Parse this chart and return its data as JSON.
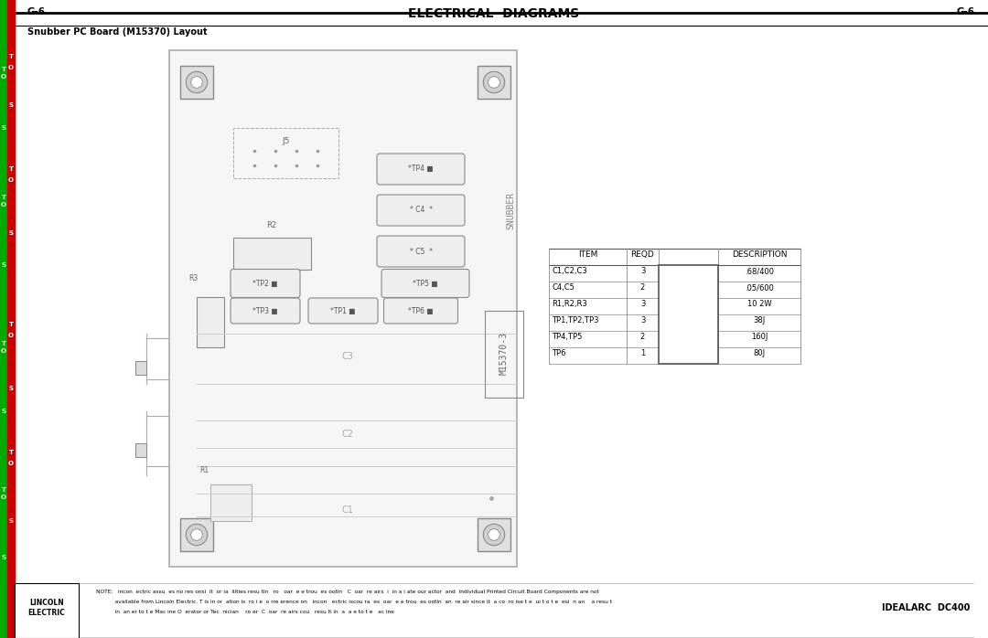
{
  "title": "ELECTRICAL  DIAGRAMS",
  "page_label": "G-6",
  "subtitle": "Snubber PC Board (M15370) Layout",
  "bg_color": "#ffffff",
  "board_color": "#e8e8e8",
  "line_color": "#aaaaaa",
  "dark_line": "#333333",
  "table": {
    "headers": [
      "ITEM",
      "REQD",
      "",
      "DESCRIPTION"
    ],
    "rows": [
      [
        "C1,C2,C3",
        "3",
        "",
        ".68/400"
      ],
      [
        "C4,C5",
        "2",
        "",
        ".05/600"
      ],
      [
        "R1,R2,R3",
        "3",
        "",
        "10 2W"
      ],
      [
        "TP1,TP2,TP3",
        "3",
        "",
        "38J"
      ],
      [
        "TP4,TP5",
        "2",
        "",
        "160J"
      ],
      [
        "TP6",
        "1",
        "",
        "80J"
      ]
    ]
  },
  "note_text": "NOTE:   incon  ectric assu  es no res onsi  it  or ia  ilities resu tin   ro   oar  e e trou  es ootin   C  oar  re airs  i  in a i ate our actor  and  Individual Printed Circuit Board Components are not\n           available from Lincoln Electric. T is in or  ation is  ro i e  o rre erence on   incon   ectric iscou ra  es  oar  e e trou  es ootin  an  re air since it  a co  ro ise t e  ui t o t e  esi  n an    a resu t\n           in  an er to t e Mac ine O  erator or Tec  nician    ro er  C  oar  re airs cou   resu lt in  a  a e to t e   ac ine",
  "footer_left": "LINCOLN\nELECTRIC",
  "footer_right": "IDEALARC  DC400",
  "left_labels_red": [
    "TO",
    "S",
    "TO",
    "S",
    "TO",
    "S",
    "TO",
    "S"
  ],
  "left_labels_green": [
    "O",
    "O",
    "O",
    "O"
  ]
}
